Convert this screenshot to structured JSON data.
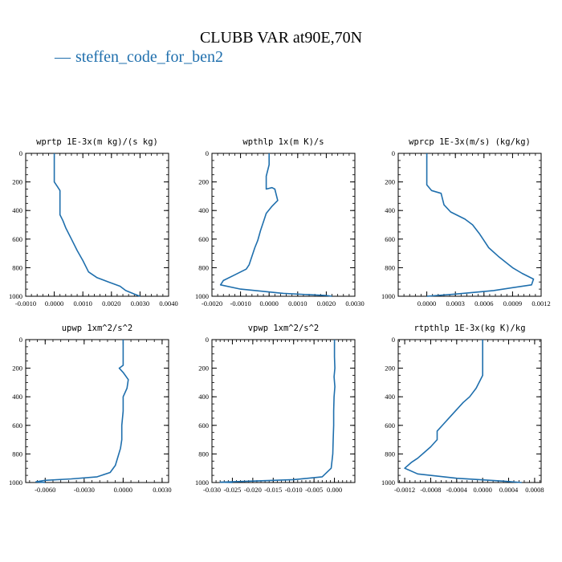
{
  "title": "CLUBB VAR at90E,70N",
  "legend": {
    "symbol": "—",
    "label": "steffen_code_for_ben2"
  },
  "colors": {
    "line": "#1f6fad",
    "axis": "#000000"
  },
  "chart_data": [
    {
      "type": "line",
      "title": "wprtp  1E-3x(m kg)/(s kg)",
      "xlim": [
        -0.001,
        0.004
      ],
      "ylim": [
        0,
        1000
      ],
      "y_inverted": true,
      "xticks": [
        "-0.0010",
        "0.0000",
        "0.0010",
        "0.0020",
        "0.0030",
        "0.0040"
      ],
      "xtick_values": [
        -0.001,
        0.0,
        0.001,
        0.002,
        0.003,
        0.004
      ],
      "yticks": [
        "0",
        "200",
        "400",
        "600",
        "800",
        "1000"
      ],
      "ytick_values": [
        0,
        200,
        400,
        600,
        800,
        1000
      ],
      "series": [
        {
          "x": [
            0.0,
            0.0,
            0.0,
            0.0001,
            0.0002,
            0.0002,
            0.0002,
            0.0003,
            0.0004,
            0.0006,
            0.0008,
            0.001,
            0.0012,
            0.0015,
            0.0019,
            0.0023,
            0.0025,
            0.0028,
            0.003
          ],
          "y": [
            0,
            100,
            200,
            230,
            260,
            350,
            430,
            470,
            520,
            600,
            680,
            750,
            830,
            870,
            900,
            930,
            960,
            985,
            1000
          ]
        }
      ]
    },
    {
      "type": "line",
      "title": "wpthlp  1x(m K)/s",
      "xlim": [
        -0.002,
        0.003
      ],
      "ylim": [
        0,
        1000
      ],
      "y_inverted": true,
      "xticks": [
        "-0.0020",
        "-0.0010",
        "0.0000",
        "0.0010",
        "0.0020",
        "0.0030"
      ],
      "xtick_values": [
        -0.002,
        -0.001,
        0.0,
        0.001,
        0.002,
        0.003
      ],
      "yticks": [
        "0",
        "200",
        "400",
        "600",
        "800",
        "1000"
      ],
      "ytick_values": [
        0,
        200,
        400,
        600,
        800,
        1000
      ],
      "series": [
        {
          "x": [
            0.0,
            0.0,
            -0.0001,
            -0.0001,
            -0.0001,
            0.0001,
            0.0002,
            0.0003,
            0.0001,
            -0.0001,
            -0.0002,
            -0.0003,
            -0.0004,
            -0.0005,
            -0.0006,
            -0.0007,
            -0.0008,
            -0.0012,
            -0.0016,
            -0.0017,
            -0.001,
            0.0005,
            0.002,
            0.0022
          ],
          "y": [
            0,
            80,
            160,
            200,
            250,
            240,
            250,
            330,
            370,
            420,
            480,
            540,
            610,
            660,
            720,
            780,
            810,
            850,
            890,
            920,
            950,
            980,
            995,
            1000
          ]
        }
      ]
    },
    {
      "type": "line",
      "title": "wprcp  1E-3x(m/s) (kg/kg)",
      "xlim": [
        -0.0003,
        0.0012
      ],
      "ylim": [
        0,
        1000
      ],
      "y_inverted": true,
      "xticks": [
        "0.0000",
        "0.0003",
        "0.0006",
        "0.0009",
        "0.0012"
      ],
      "xtick_values": [
        0.0,
        0.0003,
        0.0006,
        0.0009,
        0.0012
      ],
      "yticks": [
        "0",
        "200",
        "400",
        "600",
        "800",
        "1000"
      ],
      "ytick_values": [
        0,
        200,
        400,
        600,
        800,
        1000
      ],
      "series": [
        {
          "x": [
            0.0,
            0.0,
            0.0,
            5e-05,
            0.00015,
            0.00018,
            0.00025,
            0.0004,
            0.00048,
            0.00055,
            0.0006,
            0.00065,
            0.00075,
            0.0009,
            0.001,
            0.00112,
            0.0011,
            0.0007,
            0.0003,
            0.0
          ],
          "y": [
            0,
            100,
            220,
            260,
            280,
            360,
            410,
            460,
            500,
            560,
            610,
            660,
            720,
            800,
            840,
            880,
            920,
            960,
            985,
            1000
          ]
        }
      ]
    },
    {
      "type": "line",
      "title": "upwp  1xm^2/s^2",
      "xlim": [
        -0.0075,
        0.0035
      ],
      "ylim": [
        0,
        1000
      ],
      "y_inverted": true,
      "xticks": [
        "-0.0060",
        "-0.0030",
        "0.0000",
        "0.0030"
      ],
      "xtick_values": [
        -0.006,
        -0.003,
        0.0,
        0.003
      ],
      "yticks": [
        "0",
        "200",
        "400",
        "600",
        "800",
        "1000"
      ],
      "ytick_values": [
        0,
        200,
        400,
        600,
        800,
        1000
      ],
      "series": [
        {
          "x": [
            0.0,
            0.0,
            0.0,
            -0.0003,
            0.0,
            0.0004,
            0.0003,
            0.0,
            0.0,
            -0.0001,
            -0.0001,
            -0.0002,
            -0.0004,
            -0.0006,
            -0.001,
            -0.002,
            -0.004,
            -0.006,
            -0.0067,
            -0.006
          ],
          "y": [
            0,
            100,
            180,
            200,
            230,
            280,
            340,
            400,
            500,
            600,
            700,
            760,
            820,
            880,
            930,
            960,
            975,
            985,
            995,
            1000
          ]
        }
      ]
    },
    {
      "type": "line",
      "title": "vpwp  1xm^2/s^2",
      "xlim": [
        -0.03,
        0.005
      ],
      "ylim": [
        0,
        1000
      ],
      "y_inverted": true,
      "xticks": [
        "-0.030",
        "-0.025",
        "-0.020",
        "-0.015",
        "-0.010",
        "-0.005",
        "0.000"
      ],
      "xtick_values": [
        -0.03,
        -0.025,
        -0.02,
        -0.015,
        -0.01,
        -0.005,
        0.0
      ],
      "yticks": [
        "0",
        "200",
        "400",
        "600",
        "800",
        "1000"
      ],
      "ytick_values": [
        0,
        200,
        400,
        600,
        800,
        1000
      ],
      "series": [
        {
          "x": [
            0.0,
            0.0,
            0.0001,
            -0.0001,
            0.0001,
            -0.0001,
            -0.0002,
            -0.0002,
            -0.0003,
            -0.0004,
            -0.0008,
            -0.003,
            -0.01,
            -0.02,
            -0.028,
            -0.025
          ],
          "y": [
            0,
            120,
            200,
            260,
            330,
            400,
            500,
            600,
            700,
            800,
            900,
            960,
            980,
            990,
            998,
            1000
          ]
        }
      ]
    },
    {
      "type": "line",
      "title": "rtpthlp  1E-3x(kg K)/kg",
      "xlim": [
        -0.0013,
        0.0009
      ],
      "ylim": [
        0,
        1000
      ],
      "y_inverted": true,
      "xticks": [
        "-0.0012",
        "-0.0008",
        "-0.0004",
        "0.0000",
        "0.0004",
        "0.0008"
      ],
      "xtick_values": [
        -0.0012,
        -0.0008,
        -0.0004,
        0.0,
        0.0004,
        0.0008
      ],
      "yticks": [
        "0",
        "200",
        "400",
        "600",
        "800",
        "1000"
      ],
      "ytick_values": [
        0,
        200,
        400,
        600,
        800,
        1000
      ],
      "series": [
        {
          "x": [
            0.0,
            0.0,
            0.0,
            -0.0001,
            -0.0002,
            -0.0003,
            -0.0004,
            -0.0005,
            -0.0006,
            -0.0007,
            -0.0007,
            -0.0008,
            -0.0009,
            -0.001,
            -0.0011,
            -0.0012,
            -0.001,
            -0.0004,
            0.0003,
            0.0006
          ],
          "y": [
            0,
            100,
            250,
            340,
            400,
            440,
            490,
            540,
            590,
            640,
            700,
            750,
            790,
            830,
            860,
            900,
            940,
            970,
            990,
            1000
          ]
        }
      ]
    }
  ]
}
